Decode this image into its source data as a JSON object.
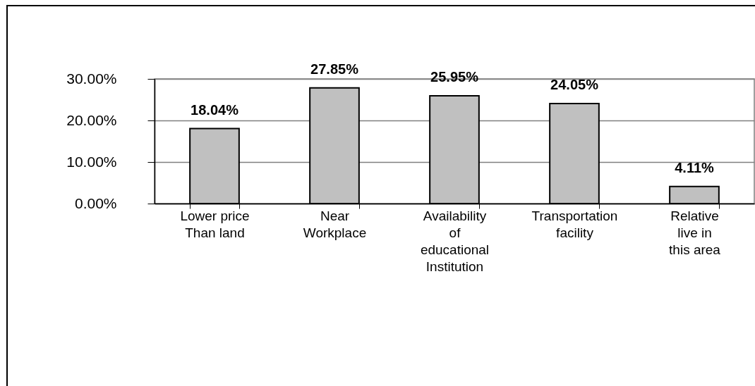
{
  "chart_data": {
    "type": "bar",
    "categories": [
      "Lower price\nThan land",
      "Near\nWorkplace",
      "Availability\nof\neducational\nInstitution",
      "Transportation\nfacility",
      "Relative\nlive in\nthis area"
    ],
    "values": [
      18.04,
      27.85,
      25.95,
      24.05,
      4.11
    ],
    "value_labels": [
      "18.04%",
      "27.85%",
      "25.95%",
      "24.05%",
      "4.11%"
    ],
    "color": "#c0c0c0",
    "ylim": [
      0,
      30
    ],
    "yticks": [
      {
        "value": 0,
        "label": "0.00%"
      },
      {
        "value": 10,
        "label": "10.00%"
      },
      {
        "value": 20,
        "label": "20.00%"
      },
      {
        "value": 30,
        "label": "30.00%"
      }
    ],
    "grid": "y"
  }
}
